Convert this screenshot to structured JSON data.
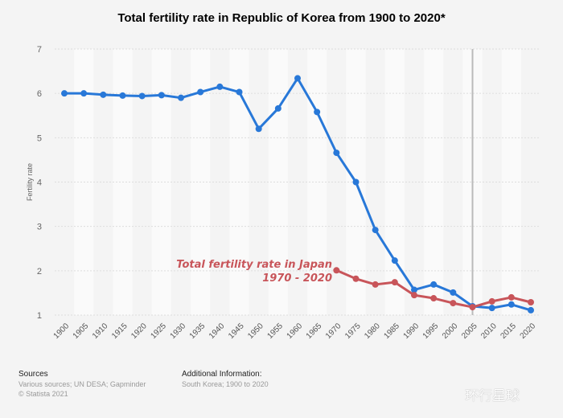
{
  "chart_data": {
    "type": "line",
    "title": "Total fertility rate in Republic of Korea from 1900 to 2020*",
    "ylabel": "Fertility rate",
    "xlabel": "",
    "ylim": [
      1,
      7
    ],
    "yticks": [
      1,
      2,
      3,
      4,
      5,
      6,
      7
    ],
    "grid": true,
    "x": [
      1900,
      1905,
      1910,
      1915,
      1920,
      1925,
      1930,
      1935,
      1940,
      1945,
      1950,
      1955,
      1960,
      1965,
      1970,
      1975,
      1980,
      1985,
      1990,
      1995,
      2000,
      2005,
      2010,
      2015,
      2020
    ],
    "series": [
      {
        "color": "#2878d8",
        "values": [
          6.0,
          6.0,
          5.97,
          5.95,
          5.94,
          5.96,
          5.9,
          6.03,
          6.15,
          6.03,
          5.2,
          5.66,
          6.34,
          5.58,
          4.66,
          4.0,
          2.92,
          2.23,
          1.57,
          1.69,
          1.51,
          1.2,
          1.16,
          1.24,
          1.11
        ]
      },
      {
        "color": "#c8555a",
        "values": [
          null,
          null,
          null,
          null,
          null,
          null,
          null,
          null,
          null,
          null,
          null,
          null,
          null,
          null,
          2.01,
          1.82,
          1.69,
          1.74,
          1.45,
          1.38,
          1.27,
          1.18,
          1.31,
          1.4,
          1.29
        ]
      }
    ],
    "annotation": {
      "line1": "Total fertility rate in Japan",
      "line2": "1970 - 2020",
      "color": "#c8555a"
    },
    "vertical_marker_x": 2005
  },
  "footer": {
    "sources_heading": "Sources",
    "sources": "Various sources; UN DESA; Gapminder",
    "copyright": "© Statista 2021",
    "info_heading": "Additional Information:",
    "info": "South Korea; 1900 to 2020"
  },
  "watermark": "环行星球"
}
